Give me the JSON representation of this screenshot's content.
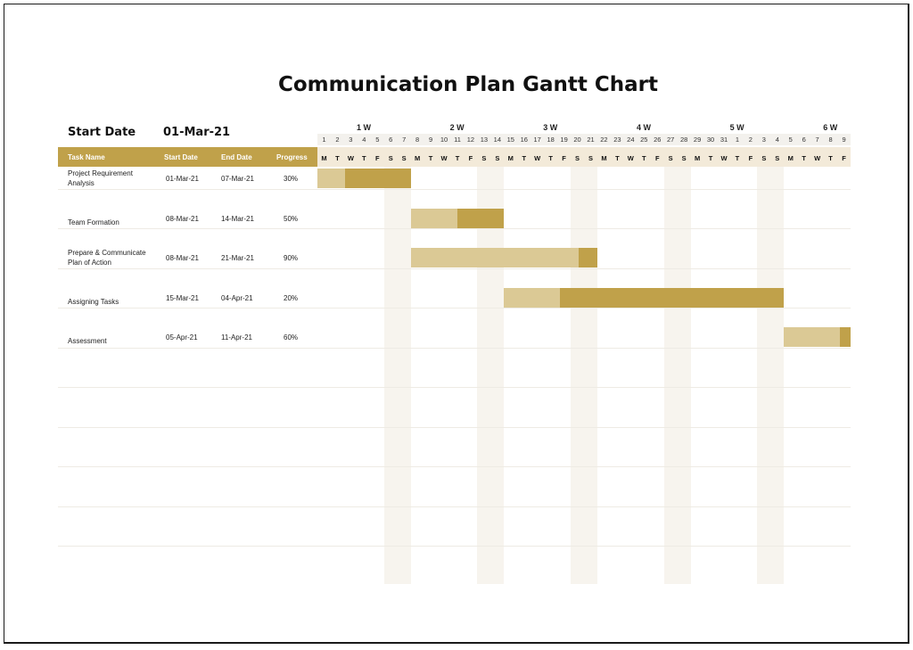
{
  "title": "Communication Plan Gantt Chart",
  "start_date_label": "Start Date",
  "start_date_value": "01-Mar-21",
  "columns": {
    "task": "Task Name",
    "start": "Start Date",
    "end": "End Date",
    "progress": "Progress"
  },
  "weeks": [
    "1 W",
    "2 W",
    "3 W",
    "4 W",
    "5 W",
    "6 W"
  ],
  "days": [
    "1",
    "2",
    "3",
    "4",
    "5",
    "6",
    "7",
    "8",
    "9",
    "10",
    "11",
    "12",
    "13",
    "14",
    "15",
    "16",
    "17",
    "18",
    "19",
    "20",
    "21",
    "22",
    "23",
    "24",
    "25",
    "26",
    "27",
    "28",
    "29",
    "30",
    "31",
    "1",
    "2",
    "3",
    "4",
    "5",
    "6",
    "7",
    "8",
    "9"
  ],
  "weekdays": [
    "M",
    "T",
    "W",
    "T",
    "F",
    "S",
    "S",
    "M",
    "T",
    "W",
    "T",
    "F",
    "S",
    "S",
    "M",
    "T",
    "W",
    "T",
    "F",
    "S",
    "S",
    "M",
    "T",
    "W",
    "T",
    "F",
    "S",
    "S",
    "M",
    "T",
    "W",
    "T",
    "F",
    "S",
    "S",
    "M",
    "T",
    "W",
    "T",
    "F"
  ],
  "tasks": [
    {
      "name": "Project Requirement Analysis",
      "start": "01-Mar-21",
      "end": "07-Mar-21",
      "progress": "30%",
      "start_day": 1,
      "duration": 7,
      "progress_fraction": 0.3
    },
    {
      "name": "Team Formation",
      "start": "08-Mar-21",
      "end": "14-Mar-21",
      "progress": "50%",
      "start_day": 8,
      "duration": 7,
      "progress_fraction": 0.5
    },
    {
      "name": "Prepare & Communicate Plan of Action",
      "start": "08-Mar-21",
      "end": "21-Mar-21",
      "progress": "90%",
      "start_day": 8,
      "duration": 14,
      "progress_fraction": 0.9
    },
    {
      "name": "Assigning Tasks",
      "start": "15-Mar-21",
      "end": "04-Apr-21",
      "progress": "20%",
      "start_day": 15,
      "duration": 21,
      "progress_fraction": 0.2
    },
    {
      "name": "Assessment",
      "start": "05-Apr-21",
      "end": "11-Apr-21",
      "progress": "60%",
      "start_day": 36,
      "duration": 7,
      "progress_fraction": 0.6
    }
  ],
  "colors": {
    "accent": "#c0a14a",
    "planned": "#dbc995",
    "weekend": "#f7f4ee",
    "header_band": "#f3ead9"
  }
}
